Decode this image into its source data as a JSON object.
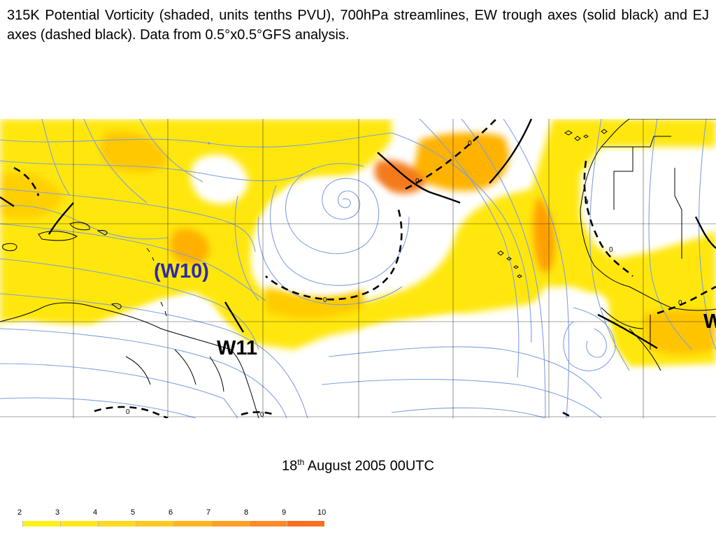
{
  "caption": "315K Potential Vorticity (shaded, units tenths PVU), 700hPa streamlines, EW trough axes (solid black) and EJ axes (dashed black). Data from 0.5°x0.5°GFS analysis.",
  "labels": {
    "w10": "(W10)",
    "w11": "W11",
    "w12": "W"
  },
  "contour_label": "0",
  "date": {
    "day": "18",
    "suffix": "th",
    "rest": "August 2005 00UTC"
  },
  "colorbar": {
    "ticks": [
      "2",
      "3",
      "4",
      "5",
      "6",
      "7",
      "8",
      "9",
      "10"
    ],
    "colors": [
      "#ffffff",
      "#fff21a",
      "#ffe71c",
      "#ffd91e",
      "#ffc820",
      "#ffb523",
      "#ffa126",
      "#fd8a26",
      "#f96f22"
    ]
  },
  "colors": {
    "streamline": "#7f9fe0",
    "coastline": "#000000",
    "grid": "#000000",
    "pv_low": "#ffe500",
    "pv_mid": "#ffb000",
    "pv_high": "#f47a1c"
  }
}
